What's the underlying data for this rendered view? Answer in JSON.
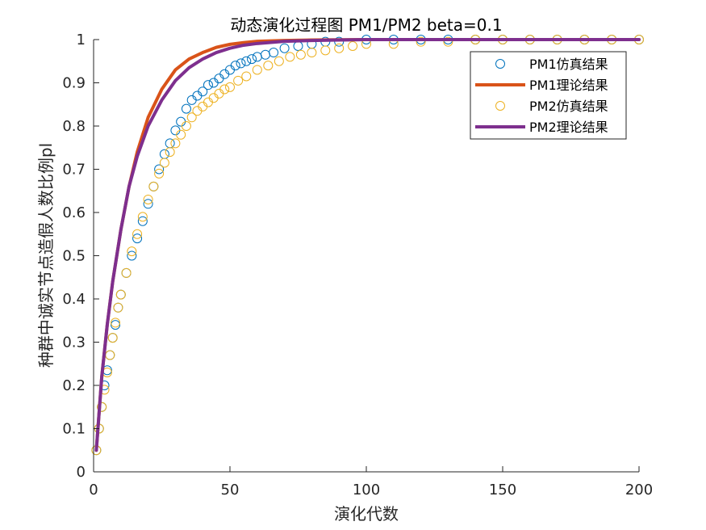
{
  "chart_data": {
    "type": "scatter",
    "title": "动态演化过程图 PM1/PM2 beta=0.1",
    "xlabel": "演化代数",
    "ylabel": "种群中诚实节点造假人数比例pl",
    "xlim": [
      0,
      200
    ],
    "ylim": [
      0,
      1
    ],
    "xticks": [
      "0",
      "50",
      "100",
      "150",
      "200"
    ],
    "yticks": [
      "0",
      "0.1",
      "0.2",
      "0.3",
      "0.4",
      "0.5",
      "0.6",
      "0.7",
      "0.8",
      "0.9",
      "1"
    ],
    "legend_position": "top-right",
    "colors": {
      "pm1_sim": "#0072BD",
      "pm1_theory": "#D95319",
      "pm2_sim": "#EDB120",
      "pm2_theory": "#7E2F8E"
    },
    "series": [
      {
        "name": "PM1仿真结果",
        "kind": "markers",
        "x": [
          1,
          2,
          3,
          4,
          5,
          6,
          7,
          8,
          9,
          10,
          12,
          14,
          16,
          18,
          20,
          22,
          24,
          26,
          28,
          30,
          32,
          34,
          36,
          38,
          40,
          42,
          44,
          46,
          48,
          50,
          52,
          54,
          56,
          58,
          60,
          63,
          66,
          70,
          75,
          80,
          85,
          90,
          100,
          110,
          120,
          130,
          140,
          150,
          160,
          170,
          180,
          190,
          200
        ],
        "y": [
          0.05,
          0.1,
          0.15,
          0.2,
          0.235,
          0.27,
          0.31,
          0.34,
          0.38,
          0.41,
          0.46,
          0.5,
          0.54,
          0.58,
          0.62,
          0.66,
          0.7,
          0.735,
          0.76,
          0.79,
          0.81,
          0.84,
          0.86,
          0.87,
          0.88,
          0.895,
          0.9,
          0.91,
          0.92,
          0.93,
          0.94,
          0.945,
          0.95,
          0.955,
          0.96,
          0.965,
          0.97,
          0.98,
          0.985,
          0.99,
          0.995,
          0.995,
          1.0,
          1.0,
          1.0,
          1.0,
          1.0,
          1.0,
          1.0,
          1.0,
          1.0,
          1.0,
          1.0
        ]
      },
      {
        "name": "PM1理论结果",
        "kind": "line",
        "x": [
          1,
          3,
          5,
          7,
          10,
          13,
          16,
          20,
          25,
          30,
          35,
          40,
          45,
          50,
          55,
          60,
          70,
          80,
          100,
          120,
          150,
          200
        ],
        "y": [
          0.05,
          0.22,
          0.34,
          0.44,
          0.56,
          0.66,
          0.74,
          0.82,
          0.885,
          0.93,
          0.955,
          0.97,
          0.982,
          0.989,
          0.993,
          0.996,
          0.998,
          0.999,
          1.0,
          1.0,
          1.0,
          1.0
        ]
      },
      {
        "name": "PM2仿真结果",
        "kind": "markers",
        "x": [
          1,
          2,
          3,
          4,
          5,
          6,
          7,
          8,
          9,
          10,
          12,
          14,
          16,
          18,
          20,
          22,
          24,
          26,
          28,
          30,
          32,
          34,
          36,
          38,
          40,
          42,
          44,
          46,
          48,
          50,
          53,
          56,
          60,
          64,
          68,
          72,
          76,
          80,
          85,
          90,
          95,
          100,
          110,
          120,
          130,
          140,
          150,
          160,
          170,
          180,
          190,
          200
        ],
        "y": [
          0.05,
          0.1,
          0.15,
          0.19,
          0.23,
          0.27,
          0.31,
          0.345,
          0.38,
          0.41,
          0.46,
          0.51,
          0.55,
          0.59,
          0.63,
          0.66,
          0.69,
          0.715,
          0.74,
          0.76,
          0.78,
          0.8,
          0.82,
          0.835,
          0.845,
          0.855,
          0.865,
          0.875,
          0.885,
          0.89,
          0.905,
          0.915,
          0.93,
          0.94,
          0.95,
          0.96,
          0.965,
          0.97,
          0.975,
          0.98,
          0.985,
          0.99,
          0.99,
          0.995,
          0.995,
          1.0,
          1.0,
          1.0,
          1.0,
          1.0,
          1.0,
          1.0
        ]
      },
      {
        "name": "PM2理论结果",
        "kind": "line",
        "x": [
          1,
          3,
          5,
          7,
          10,
          13,
          16,
          20,
          25,
          30,
          35,
          40,
          45,
          50,
          55,
          60,
          70,
          80,
          90,
          100,
          120,
          150,
          200
        ],
        "y": [
          0.05,
          0.22,
          0.34,
          0.44,
          0.56,
          0.66,
          0.73,
          0.8,
          0.86,
          0.905,
          0.935,
          0.955,
          0.97,
          0.98,
          0.987,
          0.991,
          0.996,
          0.998,
          0.999,
          1.0,
          1.0,
          1.0,
          1.0
        ]
      }
    ]
  }
}
